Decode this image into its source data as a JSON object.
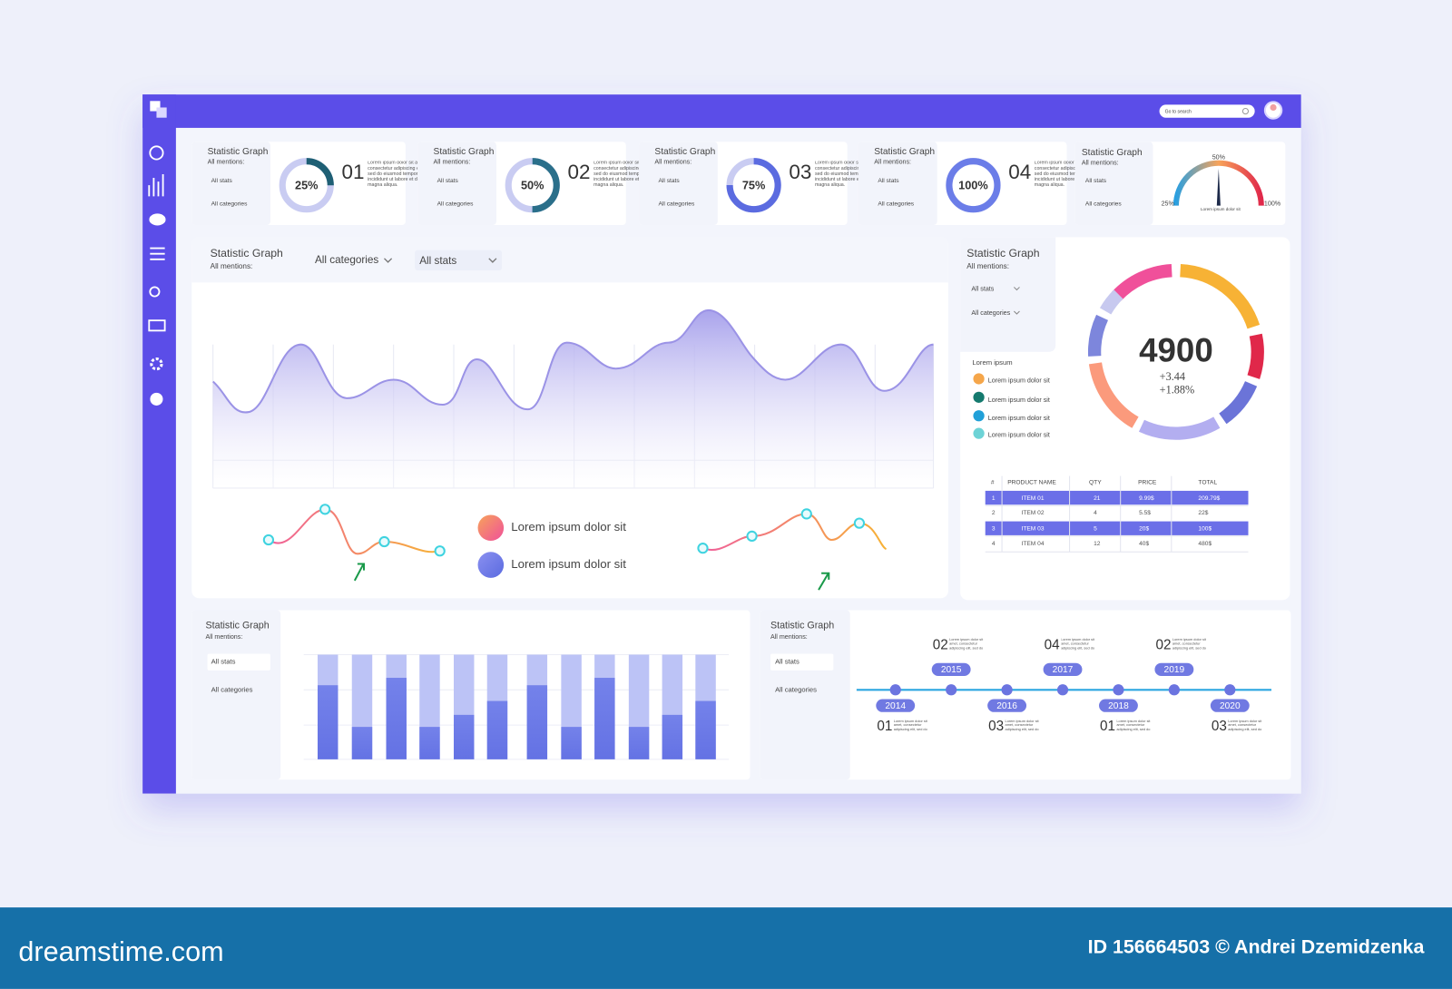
{
  "search_placeholder": "Go to search",
  "kpi_cards": [
    {
      "title": "Statistic Graph",
      "subtitle": "All mentions:",
      "filter1": "All stats",
      "filter2": "All categories",
      "percent": {
        "value": 25,
        "label": "25%"
      },
      "number": "01",
      "text": "Lorem ipsum dolor sit amet, consectetur adipiscing elit, sed do eiusmod tempor incididunt ut labore et dolore magna aliqua."
    },
    {
      "title": "Statistic Graph",
      "subtitle": "All mentions:",
      "filter1": "All stats",
      "filter2": "All categories",
      "percent": {
        "value": 50,
        "label": "50%"
      },
      "number": "02",
      "text": "Lorem ipsum dolor sit amet, consectetur adipiscing elit, sed do eiusmod tempor incididunt ut labore et dolore magna aliqua."
    },
    {
      "title": "Statistic Graph",
      "subtitle": "All mentions:",
      "filter1": "All stats",
      "filter2": "All categories",
      "percent": {
        "value": 75,
        "label": "75%"
      },
      "number": "03",
      "text": "Lorem ipsum dolor sit amet, consectetur adipiscing elit, sed do eiusmod tempor incididunt ut labore et dolore magna aliqua."
    },
    {
      "title": "Statistic Graph",
      "subtitle": "All mentions:",
      "filter1": "All stats",
      "filter2": "All categories",
      "percent": {
        "value": 100,
        "label": "100%"
      },
      "number": "04",
      "text": "Lorem ipsum dolor sit amet, consectetur adipiscing elit, sed do eiusmod tempor incididunt ut labore et dolore magna aliqua."
    }
  ],
  "gauge_card": {
    "title": "Statistic Graph",
    "subtitle": "All mentions:",
    "filter1": "All stats",
    "filter2": "All categories",
    "top_label": "50%",
    "left_label": "25%",
    "right_label": "100%",
    "caption": "Lorem ipsum dolor sit"
  },
  "main_panel": {
    "title": "Statistic Graph",
    "subtitle": "All mentions:",
    "dropdown1": "All categories",
    "dropdown2": "All stats",
    "legend": [
      "Lorem ipsum dolor sit",
      "Lorem ipsum dolor sit"
    ]
  },
  "right_panel": {
    "title": "Statistic Graph",
    "subtitle": "All mentions:",
    "filter1": "All stats",
    "filter2": "All categories",
    "legend_title": "Lorem ipsum",
    "legend": [
      "Lorem ipsum  dolor sit",
      "Lorem ipsum  dolor sit",
      "Lorem ipsum  dolor sit",
      "Lorem ipsum  dolor sit"
    ],
    "donut_value": "4900",
    "donut_change1": "+3.44",
    "donut_change2": "+1.88%",
    "table": {
      "headers": [
        "#",
        "PRODUCT NAME",
        "QTY",
        "PRICE",
        "TOTAL"
      ],
      "rows": [
        [
          1,
          "ITEM 01",
          21,
          "9.99$",
          "209.79$"
        ],
        [
          2,
          "ITEM 02",
          4,
          "5.5$",
          "22$"
        ],
        [
          3,
          "ITEM 03",
          5,
          "20$",
          "100$"
        ],
        [
          4,
          "ITEM 04",
          12,
          "40$",
          "480$"
        ]
      ]
    }
  },
  "bar_panel": {
    "title": "Statistic Graph",
    "subtitle": "All mentions:",
    "filter1": "All stats",
    "filter2": "All categories"
  },
  "timeline_panel": {
    "title": "Statistic Graph",
    "subtitle": "All mentions:",
    "filter1": "All stats",
    "filter2": "All categories",
    "items": [
      {
        "year": "2014",
        "number": "01",
        "text": "Lorem ipsum dolor sit amet, consectetur adipiscing elit, sed do"
      },
      {
        "year": "2015",
        "number": "02",
        "text": "Lorem ipsum dolor sit amet, consectetur adipiscing elit, sed do"
      },
      {
        "year": "2016",
        "number": "03",
        "text": "Lorem ipsum dolor sit amet, consectetur adipiscing elit, sed do"
      },
      {
        "year": "2017",
        "number": "04",
        "text": "Lorem ipsum dolor sit amet, consectetur adipiscing elit, sed do"
      },
      {
        "year": "2018",
        "number": "01",
        "text": "Lorem ipsum dolor sit amet, consectetur adipiscing elit, sed do"
      },
      {
        "year": "2019",
        "number": "02",
        "text": "Lorem ipsum dolor sit amet, consectetur adipiscing elit, sed do"
      },
      {
        "year": "2020",
        "number": "03",
        "text": "Lorem ipsum dolor sit amet, consectetur adipiscing elit, sed do"
      }
    ]
  },
  "footer": {
    "brand": "dreamstime.com",
    "credit": "ID 156664503 © Andrei Dzemidzenka"
  }
}
